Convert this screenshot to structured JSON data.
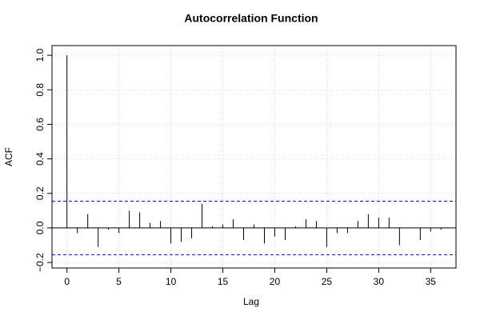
{
  "chart_data": {
    "type": "acf",
    "title": "Autocorrelation Function",
    "x_label": "Lag",
    "y_label": "ACF",
    "x": [
      0,
      1,
      2,
      3,
      4,
      5,
      6,
      7,
      8,
      9,
      10,
      11,
      12,
      13,
      14,
      15,
      16,
      17,
      18,
      19,
      20,
      21,
      22,
      23,
      24,
      25,
      26,
      27,
      28,
      29,
      30,
      31,
      32,
      33,
      34,
      35,
      36
    ],
    "values": [
      1.0,
      -0.03,
      0.08,
      -0.11,
      -0.01,
      -0.03,
      0.1,
      0.09,
      0.03,
      0.04,
      -0.09,
      -0.08,
      -0.06,
      0.14,
      0.01,
      0.02,
      0.05,
      -0.07,
      0.02,
      -0.09,
      -0.05,
      -0.07,
      0.01,
      0.05,
      0.04,
      -0.11,
      -0.03,
      -0.03,
      0.04,
      0.08,
      0.06,
      0.06,
      -0.1,
      0.0,
      -0.07,
      -0.02,
      -0.01
    ],
    "color": "#000000",
    "conf_lines": [
      0.155,
      -0.155
    ],
    "conf_color": "#0000ff",
    "xlim": [
      -1.44,
      37.44
    ],
    "ylim": [
      -0.232,
      1.056
    ],
    "xticks": [
      0,
      5,
      10,
      15,
      20,
      25,
      30,
      35
    ],
    "yticks": [
      {
        "value": -0.2,
        "label": "−0.2"
      },
      {
        "value": 0,
        "label": "0.0"
      },
      {
        "value": 0.2,
        "label": "0.2"
      },
      {
        "value": 0.4,
        "label": "0.4"
      },
      {
        "value": 0.6,
        "label": "0.6"
      },
      {
        "value": 0.8,
        "label": "0.8"
      },
      {
        "value": 1,
        "label": "1.0"
      }
    ],
    "grid": true
  }
}
